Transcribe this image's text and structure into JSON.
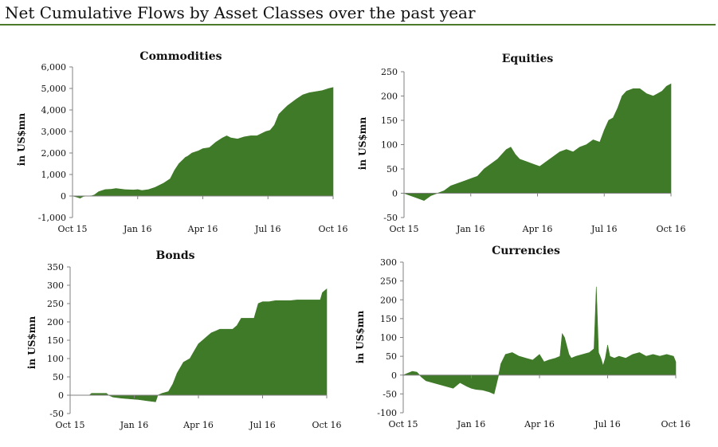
{
  "page_title": "Net Cumulative Flows by Asset Classes over the past year",
  "colors": {
    "fill": "#3f7a28",
    "axis": "#808080",
    "rule": "#4a7a2a"
  },
  "chart_data": [
    {
      "type": "area",
      "title": "Commodities",
      "ylabel": "in US$mn",
      "ylim": [
        -1000,
        6000
      ],
      "yticks": [
        -1000,
        0,
        1000,
        2000,
        3000,
        4000,
        5000,
        6000
      ],
      "ytick_labels": [
        "-1,000",
        "0",
        "1,000",
        "2,000",
        "3,000",
        "4,000",
        "5,000",
        "6,000"
      ],
      "xlim": [
        0,
        12
      ],
      "xticks": [
        0,
        3,
        6,
        9,
        12
      ],
      "xtick_labels": [
        "Oct 15",
        "Jan 16",
        "Apr 16",
        "Jul 16",
        "Oct 16"
      ],
      "x": [
        0,
        0.2,
        0.35,
        0.5,
        0.7,
        0.9,
        1.0,
        1.2,
        1.5,
        1.8,
        2.0,
        2.4,
        2.8,
        3.0,
        3.2,
        3.5,
        3.8,
        4.2,
        4.5,
        4.7,
        4.9,
        5.1,
        5.2,
        5.3,
        5.5,
        5.8,
        6.0,
        6.3,
        6.6,
        6.9,
        7.1,
        7.3,
        7.6,
        7.9,
        8.2,
        8.5,
        8.7,
        8.9,
        9.1,
        9.3,
        9.5,
        9.7,
        9.9,
        10.1,
        10.3,
        10.6,
        10.9,
        11.2,
        11.5,
        11.8,
        12.0
      ],
      "values": [
        0,
        -50,
        -100,
        -20,
        0,
        20,
        50,
        200,
        300,
        320,
        350,
        300,
        280,
        300,
        260,
        300,
        400,
        600,
        800,
        1200,
        1500,
        1700,
        1800,
        1850,
        2000,
        2100,
        2200,
        2250,
        2500,
        2700,
        2800,
        2700,
        2650,
        2750,
        2800,
        2800,
        2900,
        3000,
        3050,
        3300,
        3800,
        4000,
        4200,
        4350,
        4500,
        4700,
        4800,
        4850,
        4900,
        5000,
        5050
      ]
    },
    {
      "type": "area",
      "title": "Equities",
      "ylabel": "in US$mn",
      "ylim": [
        -50,
        250
      ],
      "yticks": [
        -50,
        0,
        50,
        100,
        150,
        200,
        250
      ],
      "ytick_labels": [
        "-50",
        "0",
        "50",
        "100",
        "150",
        "200",
        "250"
      ],
      "xlim": [
        0,
        12
      ],
      "xticks": [
        0,
        3,
        6,
        9,
        12
      ],
      "xtick_labels": [
        "Oct 15",
        "Jan 16",
        "Apr 16",
        "Jul 16",
        "Oct 16"
      ],
      "x": [
        0,
        0.3,
        0.6,
        0.9,
        1.2,
        1.5,
        1.8,
        2.1,
        2.4,
        2.7,
        3.0,
        3.3,
        3.6,
        3.9,
        4.2,
        4.4,
        4.6,
        4.8,
        5.0,
        5.2,
        5.5,
        5.8,
        6.1,
        6.4,
        6.7,
        7.0,
        7.3,
        7.6,
        7.9,
        8.2,
        8.5,
        8.8,
        9.0,
        9.2,
        9.4,
        9.6,
        9.8,
        10.0,
        10.3,
        10.6,
        10.9,
        11.2,
        11.4,
        11.6,
        11.8,
        12.0
      ],
      "values": [
        0,
        -5,
        -10,
        -15,
        -5,
        0,
        5,
        15,
        20,
        25,
        30,
        35,
        50,
        60,
        70,
        80,
        90,
        95,
        80,
        70,
        65,
        60,
        55,
        65,
        75,
        85,
        90,
        85,
        95,
        100,
        110,
        105,
        130,
        150,
        155,
        175,
        200,
        210,
        215,
        215,
        205,
        200,
        205,
        210,
        220,
        225
      ]
    },
    {
      "type": "area",
      "title": "Bonds",
      "ylabel": "in US$mn",
      "ylim": [
        -50,
        350
      ],
      "yticks": [
        -50,
        0,
        50,
        100,
        150,
        200,
        250,
        300,
        350
      ],
      "ytick_labels": [
        "-50",
        "0",
        "50",
        "100",
        "150",
        "200",
        "250",
        "300",
        "350"
      ],
      "xlim": [
        0,
        12
      ],
      "xticks": [
        0,
        3,
        6,
        9,
        12
      ],
      "xtick_labels": [
        "Oct 15",
        "Jan 16",
        "Apr 16",
        "Jul 16",
        "Oct 16"
      ],
      "x": [
        0,
        0.5,
        0.9,
        1.0,
        1.7,
        1.8,
        2.0,
        2.4,
        2.8,
        3.2,
        3.6,
        4.0,
        4.1,
        4.3,
        4.6,
        4.8,
        5.0,
        5.3,
        5.6,
        5.8,
        6.0,
        6.2,
        6.4,
        6.6,
        6.8,
        7.0,
        7.3,
        7.6,
        7.8,
        8.0,
        8.3,
        8.6,
        8.8,
        9.0,
        9.3,
        9.6,
        9.8,
        10.0,
        10.3,
        10.6,
        11.0,
        11.4,
        11.7,
        11.8,
        12.0
      ],
      "values": [
        0,
        0,
        0,
        5,
        5,
        0,
        -5,
        -8,
        -10,
        -12,
        -15,
        -18,
        0,
        5,
        10,
        30,
        60,
        90,
        100,
        120,
        140,
        150,
        160,
        170,
        175,
        180,
        180,
        180,
        190,
        210,
        210,
        210,
        250,
        255,
        255,
        258,
        258,
        258,
        258,
        260,
        260,
        260,
        260,
        280,
        290
      ]
    },
    {
      "type": "area",
      "title": "Currencies",
      "ylabel": "in US$mn",
      "ylim": [
        -100,
        300
      ],
      "yticks": [
        -100,
        -50,
        0,
        50,
        100,
        150,
        200,
        250,
        300
      ],
      "ytick_labels": [
        "-100",
        "-50",
        "0",
        "50",
        "100",
        "150",
        "200",
        "250",
        "300"
      ],
      "xlim": [
        0,
        12
      ],
      "xticks": [
        0,
        3,
        6,
        9,
        12
      ],
      "xtick_labels": [
        "Oct 15",
        "Jan 16",
        "Apr 16",
        "Jul 16",
        "Oct 16"
      ],
      "x": [
        0,
        0.2,
        0.4,
        0.6,
        0.8,
        1.0,
        1.3,
        1.6,
        1.9,
        2.2,
        2.5,
        2.8,
        3.0,
        3.2,
        3.5,
        3.8,
        4.0,
        4.1,
        4.2,
        4.3,
        4.5,
        4.8,
        5.1,
        5.4,
        5.7,
        6.0,
        6.2,
        6.4,
        6.7,
        6.9,
        7.0,
        7.1,
        7.3,
        7.4,
        7.6,
        7.9,
        8.2,
        8.4,
        8.5,
        8.6,
        8.7,
        8.8,
        8.9,
        9.0,
        9.1,
        9.3,
        9.5,
        9.8,
        10.1,
        10.4,
        10.7,
        11.0,
        11.3,
        11.6,
        11.9,
        12.0
      ],
      "values": [
        0,
        5,
        10,
        8,
        -5,
        -15,
        -20,
        -25,
        -30,
        -35,
        -20,
        -30,
        -35,
        -38,
        -40,
        -45,
        -50,
        -25,
        0,
        30,
        55,
        60,
        50,
        45,
        40,
        55,
        35,
        40,
        45,
        50,
        110,
        100,
        55,
        45,
        50,
        55,
        60,
        70,
        235,
        60,
        45,
        25,
        45,
        80,
        50,
        45,
        50,
        45,
        55,
        60,
        50,
        55,
        50,
        55,
        50,
        35
      ]
    }
  ]
}
